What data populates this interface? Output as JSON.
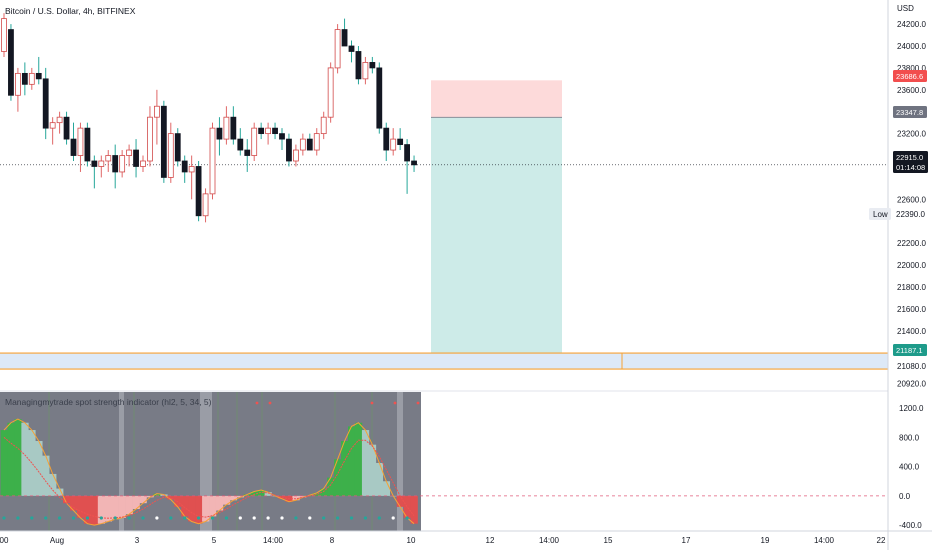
{
  "header": {
    "symbol_title": "Bitcoin / U.S. Dollar, 4h, BITFINEX",
    "currency": "USD"
  },
  "indicator": {
    "title": "Managingmytrade spot strength indicator (hl2, 5, 34, 5)"
  },
  "price_labels": {
    "stop_loss": "23686.6",
    "entry": "23347.8",
    "current": "22915.0",
    "countdown": "01:14:08",
    "low_tag": "Low",
    "low_value": "22390.0",
    "alert_level": "21187.1"
  },
  "colors": {
    "bull": "#26a69a",
    "bear_body": "#ef5350",
    "stop_zone": "#fddada",
    "target_zone": "#cdebe8",
    "alert_line": "#f7a234",
    "alert_band": "#dde9f7",
    "current_tag": "#131722",
    "entry_tag": "#6f7380",
    "stop_tag": "#f24e4e",
    "alert_tag": "#1e9b8a",
    "indicator_bg": "#787b86"
  },
  "chart_data": [
    {
      "type": "candlestick",
      "title": "Bitcoin / U.S. Dollar, 4h, BITFINEX",
      "ylabel": "USD",
      "ylim": [
        20850,
        24420
      ],
      "y_ticks": [
        24200,
        24000,
        23800,
        23600,
        23400,
        23200,
        23000,
        22600,
        22200,
        22000,
        21800,
        21600,
        21400,
        21200,
        21080,
        20920
      ],
      "x_ticks": [
        "00",
        "Aug",
        "3",
        "5",
        "14:00",
        "8",
        "10",
        "12",
        "14:00",
        "15",
        "17",
        "19",
        "14:00",
        "22"
      ],
      "candles": [
        {
          "o": 23950,
          "h": 24300,
          "l": 23900,
          "c": 24250
        },
        {
          "o": 24150,
          "h": 24200,
          "l": 23500,
          "c": 23550
        },
        {
          "o": 23550,
          "h": 23800,
          "l": 23400,
          "c": 23750
        },
        {
          "o": 23750,
          "h": 23850,
          "l": 23550,
          "c": 23650
        },
        {
          "o": 23650,
          "h": 23800,
          "l": 23600,
          "c": 23750
        },
        {
          "o": 23750,
          "h": 23900,
          "l": 23650,
          "c": 23700
        },
        {
          "o": 23700,
          "h": 23800,
          "l": 23150,
          "c": 23250
        },
        {
          "o": 23250,
          "h": 23350,
          "l": 23100,
          "c": 23300
        },
        {
          "o": 23300,
          "h": 23400,
          "l": 23200,
          "c": 23350
        },
        {
          "o": 23350,
          "h": 23400,
          "l": 23100,
          "c": 23150
        },
        {
          "o": 23150,
          "h": 23300,
          "l": 22950,
          "c": 23000
        },
        {
          "o": 23000,
          "h": 23300,
          "l": 22850,
          "c": 23250
        },
        {
          "o": 23250,
          "h": 23300,
          "l": 22900,
          "c": 22950
        },
        {
          "o": 22950,
          "h": 23000,
          "l": 22700,
          "c": 22900
        },
        {
          "o": 22900,
          "h": 23000,
          "l": 22800,
          "c": 22950
        },
        {
          "o": 22950,
          "h": 23050,
          "l": 22850,
          "c": 23000
        },
        {
          "o": 23000,
          "h": 23100,
          "l": 22700,
          "c": 22850
        },
        {
          "o": 22850,
          "h": 23050,
          "l": 22800,
          "c": 23000
        },
        {
          "o": 23000,
          "h": 23100,
          "l": 22900,
          "c": 23050
        },
        {
          "o": 23050,
          "h": 23150,
          "l": 22800,
          "c": 22900
        },
        {
          "o": 22900,
          "h": 23000,
          "l": 22850,
          "c": 22950
        },
        {
          "o": 22950,
          "h": 23450,
          "l": 22900,
          "c": 23350
        },
        {
          "o": 23350,
          "h": 23600,
          "l": 23100,
          "c": 23450
        },
        {
          "o": 23450,
          "h": 23500,
          "l": 22750,
          "c": 22800
        },
        {
          "o": 22800,
          "h": 23300,
          "l": 22750,
          "c": 23200
        },
        {
          "o": 23200,
          "h": 23250,
          "l": 22900,
          "c": 22950
        },
        {
          "o": 22950,
          "h": 23000,
          "l": 22750,
          "c": 22850
        },
        {
          "o": 22850,
          "h": 23000,
          "l": 22600,
          "c": 22900
        },
        {
          "o": 22900,
          "h": 22950,
          "l": 22400,
          "c": 22450
        },
        {
          "o": 22450,
          "h": 22700,
          "l": 22390,
          "c": 22650
        },
        {
          "o": 22650,
          "h": 23300,
          "l": 22600,
          "c": 23250
        },
        {
          "o": 23250,
          "h": 23350,
          "l": 23000,
          "c": 23150
        },
        {
          "o": 23150,
          "h": 23450,
          "l": 23100,
          "c": 23350
        },
        {
          "o": 23350,
          "h": 23450,
          "l": 23100,
          "c": 23150
        },
        {
          "o": 23150,
          "h": 23250,
          "l": 23000,
          "c": 23050
        },
        {
          "o": 23050,
          "h": 23150,
          "l": 22850,
          "c": 23000
        },
        {
          "o": 23000,
          "h": 23300,
          "l": 22950,
          "c": 23250
        },
        {
          "o": 23250,
          "h": 23300,
          "l": 23150,
          "c": 23200
        },
        {
          "o": 23200,
          "h": 23300,
          "l": 23100,
          "c": 23250
        },
        {
          "o": 23250,
          "h": 23300,
          "l": 23150,
          "c": 23200
        },
        {
          "o": 23200,
          "h": 23250,
          "l": 23050,
          "c": 23150
        },
        {
          "o": 23150,
          "h": 23200,
          "l": 22900,
          "c": 22950
        },
        {
          "o": 22950,
          "h": 23100,
          "l": 22900,
          "c": 23050
        },
        {
          "o": 23050,
          "h": 23200,
          "l": 23000,
          "c": 23150
        },
        {
          "o": 23150,
          "h": 23200,
          "l": 23050,
          "c": 23050
        },
        {
          "o": 23050,
          "h": 23250,
          "l": 23000,
          "c": 23200
        },
        {
          "o": 23200,
          "h": 23400,
          "l": 23150,
          "c": 23350
        },
        {
          "o": 23350,
          "h": 23850,
          "l": 23300,
          "c": 23800
        },
        {
          "o": 23800,
          "h": 24200,
          "l": 23750,
          "c": 24150
        },
        {
          "o": 24150,
          "h": 24250,
          "l": 24000,
          "c": 24000
        },
        {
          "o": 24000,
          "h": 24050,
          "l": 23850,
          "c": 23950
        },
        {
          "o": 23950,
          "h": 24000,
          "l": 23650,
          "c": 23700
        },
        {
          "o": 23700,
          "h": 23900,
          "l": 23650,
          "c": 23850
        },
        {
          "o": 23850,
          "h": 23900,
          "l": 23750,
          "c": 23800
        },
        {
          "o": 23800,
          "h": 23850,
          "l": 23200,
          "c": 23250
        },
        {
          "o": 23250,
          "h": 23300,
          "l": 22950,
          "c": 23050
        },
        {
          "o": 23050,
          "h": 23250,
          "l": 23000,
          "c": 23150
        },
        {
          "o": 23150,
          "h": 23250,
          "l": 23050,
          "c": 23100
        },
        {
          "o": 23100,
          "h": 23150,
          "l": 22650,
          "c": 22950
        },
        {
          "o": 22950,
          "h": 23000,
          "l": 22850,
          "c": 22915
        }
      ],
      "position": {
        "stop_loss": 23686.6,
        "entry": 23347.8,
        "target": 21187.1
      },
      "current_price": 22915.0,
      "low": 22390.0,
      "alert_level": 21187.1
    },
    {
      "type": "area",
      "title": "Managingmytrade spot strength indicator (hl2, 5, 34, 5)",
      "ylim": [
        -480,
        1420
      ],
      "y_ticks": [
        1200.0,
        800.0,
        400.0,
        0.0,
        -400.0
      ],
      "values": [
        900,
        1000,
        1050,
        1000,
        900,
        750,
        550,
        300,
        100,
        -100,
        -200,
        -300,
        -380,
        -400,
        -380,
        -350,
        -320,
        -300,
        -250,
        -180,
        -100,
        -20,
        30,
        20,
        -50,
        -150,
        -280,
        -350,
        -380,
        -350,
        -280,
        -200,
        -120,
        -60,
        -20,
        20,
        60,
        80,
        50,
        0,
        -40,
        -80,
        -60,
        -20,
        10,
        40,
        100,
        250,
        500,
        750,
        950,
        1000,
        900,
        700,
        450,
        200,
        0,
        -150,
        -300,
        -380
      ],
      "signal": [
        800,
        720,
        650,
        560,
        450,
        330,
        200,
        80,
        -20,
        -100,
        -160,
        -210,
        -250,
        -280,
        -300,
        -305,
        -300,
        -290,
        -270,
        -230,
        -180,
        -120,
        -60,
        -20,
        -30,
        -80,
        -160,
        -230,
        -280,
        -290,
        -270,
        -230,
        -180,
        -120,
        -70,
        -20,
        20,
        50,
        40,
        10,
        -20,
        -40,
        -40,
        -20,
        0,
        20,
        60,
        150,
        300,
        480,
        650,
        760,
        760,
        680,
        540,
        360,
        180,
        0,
        -150,
        -270
      ]
    }
  ]
}
